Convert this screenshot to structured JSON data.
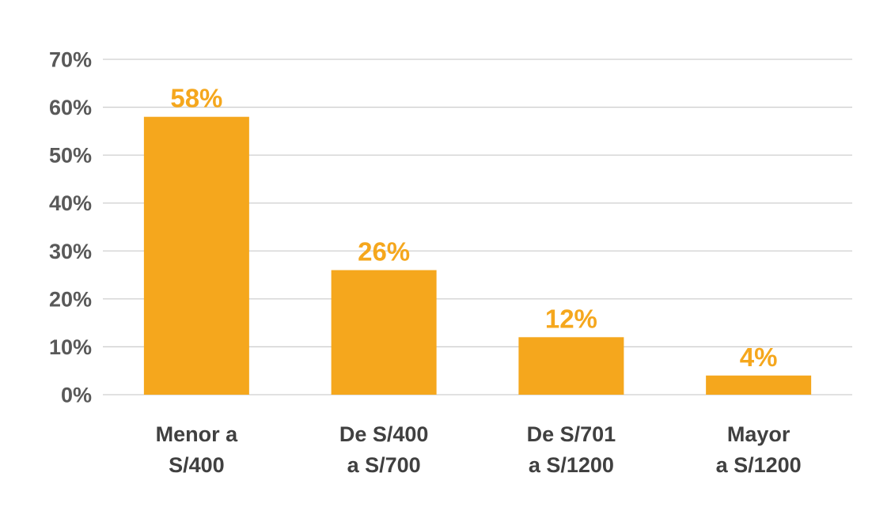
{
  "chart_data": {
    "type": "bar",
    "categories": [
      [
        "Menor a",
        "S/400"
      ],
      [
        "De S/400",
        "a S/700"
      ],
      [
        "De S/701",
        "a S/1200"
      ],
      [
        "Mayor",
        "a S/1200"
      ]
    ],
    "values": [
      58,
      26,
      12,
      4
    ],
    "data_labels": [
      "58%",
      "26%",
      "12%",
      "4%"
    ],
    "y_ticks": [
      {
        "value": 0,
        "label": "0%"
      },
      {
        "value": 10,
        "label": "10%"
      },
      {
        "value": 20,
        "label": "20%"
      },
      {
        "value": 30,
        "label": "30%"
      },
      {
        "value": 40,
        "label": "40%"
      },
      {
        "value": 50,
        "label": "50%"
      },
      {
        "value": 60,
        "label": "60%"
      },
      {
        "value": 70,
        "label": "70%"
      }
    ],
    "ylim": [
      0,
      70
    ],
    "grid": true,
    "legend": "none",
    "colors": {
      "bar": "#F5A71D",
      "data_label": "#F5A71D",
      "grid": "#CFCFCF",
      "tick_label": "#595959",
      "category_label": "#404040"
    }
  }
}
